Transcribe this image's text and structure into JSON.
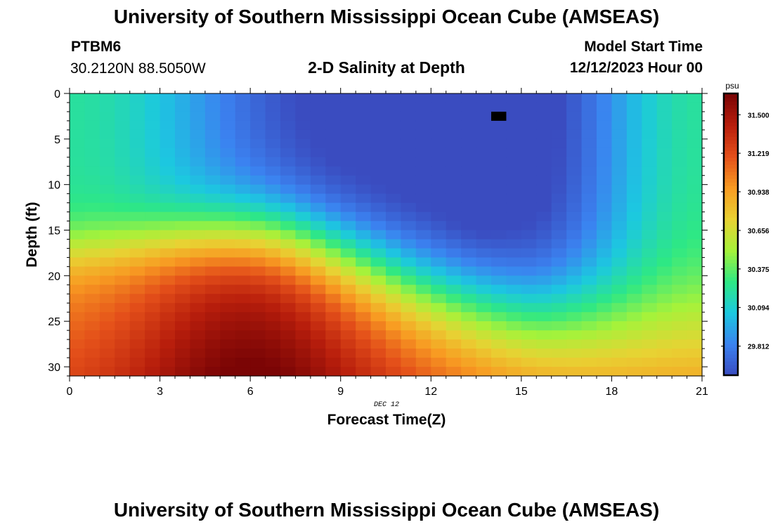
{
  "header": {
    "title": "University of Southern Mississippi Ocean Cube (AMSEAS)",
    "station_id": "PTBM6",
    "coords": "30.2120N  88.5050W",
    "subtitle": "2-D Salinity at Depth",
    "model_start_label": "Model Start Time",
    "model_start_value": "12/12/2023 Hour 00"
  },
  "footer": {
    "title": "University of Southern Mississippi Ocean Cube (AMSEAS)"
  },
  "chart_data": {
    "type": "heatmap",
    "title": "2-D Salinity at Depth",
    "xlabel": "Forecast Time(Z)",
    "ylabel": "Depth (ft)",
    "date_label": "DEC 12",
    "xlim": [
      0,
      21
    ],
    "ylim": [
      0,
      31
    ],
    "x_ticks": [
      0,
      3,
      6,
      9,
      12,
      15,
      18,
      21
    ],
    "y_ticks": [
      0,
      5,
      10,
      15,
      20,
      25,
      30
    ],
    "colorbar": {
      "unit": "psu",
      "ticks": [
        "31.500",
        "31.219",
        "30.938",
        "30.656",
        "30.375",
        "30.094",
        "29.812"
      ],
      "tick_values": [
        31.5,
        31.219,
        30.938,
        30.656,
        30.375,
        30.094,
        29.812
      ],
      "range": [
        29.6,
        31.65
      ],
      "colors": [
        "#3a4cc0",
        "#3b82f0",
        "#1cc8e0",
        "#2ee884",
        "#a6f23a",
        "#e8d233",
        "#f89b22",
        "#e4501a",
        "#b81e0c",
        "#7b0505"
      ]
    },
    "grid_dx_hours": 0.5,
    "grid_dy_ft": 1,
    "masked_cell": {
      "x": 14.0,
      "y": 2.0
    },
    "field": {
      "upper_edge": 29.75,
      "upper_mid": 29.55,
      "upper_plume": 29.15,
      "lower_shallow": 31.05,
      "lower_mid": 31.55,
      "lower_late": 30.88
    }
  }
}
